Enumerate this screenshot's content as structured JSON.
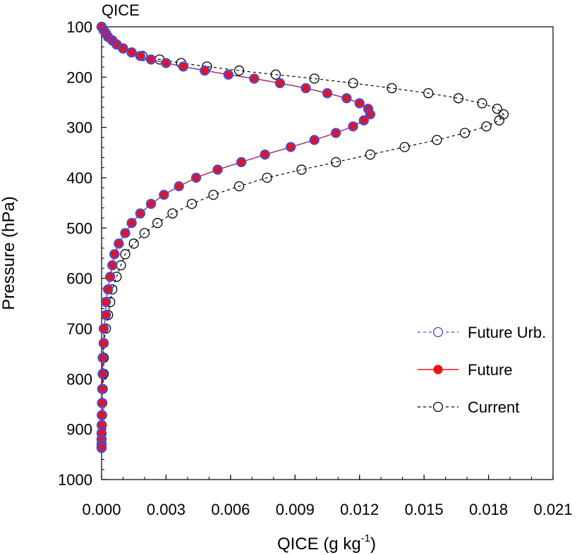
{
  "chart_data": {
    "type": "line",
    "title": "QICE",
    "xlabel": "QICE (g kg",
    "xlabel_sup": "-1",
    "xlabel_close": ")",
    "ylabel": "Pressure (hPa)",
    "xlim": [
      0.0,
      0.021
    ],
    "ylim": [
      1000,
      100
    ],
    "y_inverted": true,
    "x_ticks": [
      0.0,
      0.003,
      0.006,
      0.009,
      0.012,
      0.015,
      0.018,
      0.021
    ],
    "x_tick_labels": [
      "0.000",
      "0.003",
      "0.006",
      "0.009",
      "0.012",
      "0.015",
      "0.018",
      "0.021"
    ],
    "y_ticks": [
      100,
      200,
      300,
      400,
      500,
      600,
      700,
      800,
      900,
      1000
    ],
    "y_tick_labels": [
      "100",
      "200",
      "300",
      "400",
      "500",
      "600",
      "700",
      "800",
      "900",
      "1000"
    ],
    "grid": false,
    "legend_position": "lower-right",
    "series": [
      {
        "name": "Future Urb.",
        "color": "#4444dd",
        "line_style": "dashed",
        "marker": "open-circle",
        "draw_order": 2,
        "points": [
          [
            0.0,
            100
          ],
          [
            0.0001,
            107
          ],
          [
            0.0002,
            113
          ],
          [
            0.0003,
            120
          ],
          [
            0.0005,
            127
          ],
          [
            0.0007,
            135
          ],
          [
            0.001,
            143
          ],
          [
            0.0014,
            151
          ],
          [
            0.0018,
            158
          ],
          [
            0.0023,
            165
          ],
          [
            0.003,
            172
          ],
          [
            0.0038,
            179
          ],
          [
            0.0048,
            187
          ],
          [
            0.0059,
            195
          ],
          [
            0.0071,
            203
          ],
          [
            0.0083,
            212
          ],
          [
            0.0095,
            222
          ],
          [
            0.0105,
            232
          ],
          [
            0.0114,
            242
          ],
          [
            0.012,
            252
          ],
          [
            0.0124,
            263
          ],
          [
            0.0125,
            274
          ],
          [
            0.0122,
            286
          ],
          [
            0.0117,
            298
          ],
          [
            0.0109,
            311
          ],
          [
            0.0099,
            325
          ],
          [
            0.0088,
            339
          ],
          [
            0.0076,
            354
          ],
          [
            0.0065,
            369
          ],
          [
            0.0054,
            384
          ],
          [
            0.0044,
            400
          ],
          [
            0.0036,
            417
          ],
          [
            0.0029,
            434
          ],
          [
            0.0023,
            452
          ],
          [
            0.0018,
            471
          ],
          [
            0.0014,
            490
          ],
          [
            0.0011,
            510
          ],
          [
            0.0008,
            531
          ],
          [
            0.0006,
            552
          ],
          [
            0.0005,
            574
          ],
          [
            0.0004,
            597
          ],
          [
            0.0003,
            622
          ],
          [
            0.0002,
            647
          ],
          [
            0.0002,
            673
          ],
          [
            0.0001,
            700
          ],
          [
            0.0001,
            729
          ],
          [
            5e-05,
            758
          ],
          [
            5e-05,
            790
          ],
          [
            3e-05,
            820
          ],
          [
            2e-05,
            848
          ],
          [
            1e-05,
            872
          ],
          [
            1e-05,
            892
          ],
          [
            0.0,
            908
          ],
          [
            0.0,
            920
          ],
          [
            0.0,
            930
          ],
          [
            0.0,
            937
          ]
        ]
      },
      {
        "name": "Future",
        "color": "#ee1111",
        "line_style": "solid",
        "marker": "filled-circle",
        "draw_order": 1,
        "points": [
          [
            0.0,
            100
          ],
          [
            0.0001,
            107
          ],
          [
            0.0002,
            113
          ],
          [
            0.0003,
            120
          ],
          [
            0.0005,
            127
          ],
          [
            0.0007,
            135
          ],
          [
            0.001,
            143
          ],
          [
            0.0014,
            151
          ],
          [
            0.0018,
            158
          ],
          [
            0.0023,
            165
          ],
          [
            0.003,
            172
          ],
          [
            0.0038,
            179
          ],
          [
            0.0048,
            187
          ],
          [
            0.0059,
            195
          ],
          [
            0.0071,
            203
          ],
          [
            0.0083,
            212
          ],
          [
            0.0095,
            222
          ],
          [
            0.0105,
            232
          ],
          [
            0.0114,
            242
          ],
          [
            0.012,
            252
          ],
          [
            0.0124,
            263
          ],
          [
            0.0125,
            274
          ],
          [
            0.0122,
            286
          ],
          [
            0.0117,
            298
          ],
          [
            0.0109,
            311
          ],
          [
            0.0099,
            325
          ],
          [
            0.0088,
            339
          ],
          [
            0.0076,
            354
          ],
          [
            0.0065,
            369
          ],
          [
            0.0054,
            384
          ],
          [
            0.0044,
            400
          ],
          [
            0.0036,
            417
          ],
          [
            0.0029,
            434
          ],
          [
            0.0023,
            452
          ],
          [
            0.0018,
            471
          ],
          [
            0.0014,
            490
          ],
          [
            0.0011,
            510
          ],
          [
            0.0008,
            531
          ],
          [
            0.0006,
            552
          ],
          [
            0.0005,
            574
          ],
          [
            0.0004,
            597
          ],
          [
            0.0003,
            622
          ],
          [
            0.0002,
            647
          ],
          [
            0.0002,
            673
          ],
          [
            0.0001,
            700
          ],
          [
            0.0001,
            729
          ],
          [
            5e-05,
            758
          ],
          [
            5e-05,
            790
          ],
          [
            3e-05,
            820
          ],
          [
            2e-05,
            848
          ],
          [
            1e-05,
            872
          ],
          [
            1e-05,
            892
          ],
          [
            0.0,
            908
          ],
          [
            0.0,
            920
          ],
          [
            0.0,
            930
          ],
          [
            0.0,
            937
          ]
        ]
      },
      {
        "name": "Current",
        "color": "#000000",
        "line_style": "dashed",
        "marker": "open-circle",
        "draw_order": 0,
        "points": [
          [
            0.0,
            100
          ],
          [
            0.0001,
            107
          ],
          [
            0.0002,
            113
          ],
          [
            0.0003,
            120
          ],
          [
            0.0005,
            127
          ],
          [
            0.0007,
            135
          ],
          [
            0.001,
            143
          ],
          [
            0.0014,
            151
          ],
          [
            0.0019,
            158
          ],
          [
            0.0027,
            165
          ],
          [
            0.0037,
            172
          ],
          [
            0.0049,
            179
          ],
          [
            0.0064,
            187
          ],
          [
            0.0081,
            195
          ],
          [
            0.0099,
            203
          ],
          [
            0.0117,
            212
          ],
          [
            0.0135,
            222
          ],
          [
            0.0152,
            232
          ],
          [
            0.0166,
            242
          ],
          [
            0.0177,
            252
          ],
          [
            0.0184,
            263
          ],
          [
            0.0187,
            274
          ],
          [
            0.0185,
            286
          ],
          [
            0.0179,
            298
          ],
          [
            0.0169,
            311
          ],
          [
            0.0156,
            325
          ],
          [
            0.0141,
            339
          ],
          [
            0.0125,
            354
          ],
          [
            0.0109,
            369
          ],
          [
            0.0093,
            384
          ],
          [
            0.0077,
            400
          ],
          [
            0.0064,
            417
          ],
          [
            0.0052,
            434
          ],
          [
            0.0042,
            452
          ],
          [
            0.0033,
            471
          ],
          [
            0.0026,
            490
          ],
          [
            0.002,
            510
          ],
          [
            0.0015,
            531
          ],
          [
            0.0011,
            552
          ],
          [
            0.0009,
            574
          ],
          [
            0.0007,
            597
          ],
          [
            0.0005,
            622
          ],
          [
            0.0004,
            647
          ],
          [
            0.0003,
            673
          ],
          [
            0.0002,
            700
          ],
          [
            0.0001,
            729
          ],
          [
            0.0001,
            758
          ],
          [
            0.0001,
            790
          ],
          [
            5e-05,
            820
          ],
          [
            3e-05,
            848
          ],
          [
            2e-05,
            872
          ],
          [
            1e-05,
            892
          ],
          [
            0.0,
            908
          ],
          [
            0.0,
            920
          ],
          [
            0.0,
            930
          ],
          [
            0.0,
            937
          ]
        ]
      }
    ],
    "legend": [
      "Future Urb.",
      "Future",
      "Current"
    ]
  }
}
